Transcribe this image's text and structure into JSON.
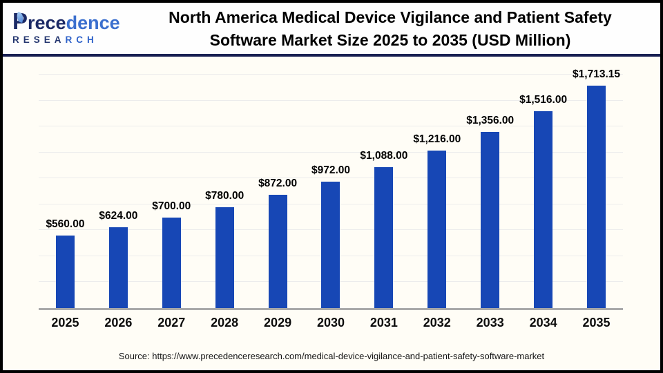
{
  "header": {
    "logo": {
      "brand_dark": "Prece",
      "brand_light": "dence",
      "sub_dark": "RESEA",
      "sub_light": "RCH"
    },
    "title_line1": "North America Medical Device Vigilance and Patient Safety",
    "title_line2": "Software Market Size 2025 to 2035 (USD Million)"
  },
  "chart_data": {
    "type": "bar",
    "title": "North America Medical Device Vigilance and Patient Safety Software Market Size 2025 to 2035 (USD Million)",
    "categories": [
      "2025",
      "2026",
      "2027",
      "2028",
      "2029",
      "2030",
      "2031",
      "2032",
      "2033",
      "2034",
      "2035"
    ],
    "values": [
      560,
      624,
      700,
      780,
      872,
      972,
      1088,
      1216,
      1356,
      1516,
      1713.15
    ],
    "data_labels": [
      "$560.00",
      "$624.00",
      "$700.00",
      "$780.00",
      "$872.00",
      "$972.00",
      "$1,088.00",
      "$1,216.00",
      "$1,356.00",
      "$1,516.00",
      "$1,713.15"
    ],
    "xlabel": "",
    "ylabel": "",
    "ylim": [
      0,
      1800
    ],
    "gridline_step": 200,
    "grid": "on",
    "legend": "none",
    "y_axis_tick_labels": "none",
    "bar_color": "#1747b5",
    "gridline_color": "#ececec",
    "axis_color": "#a9a9a9"
  },
  "footer": {
    "source": "Source: https://www.precedenceresearch.com/medical-device-vigilance-and-patient-safety-software-market"
  },
  "colors": {
    "accent_blue": "#1747b5",
    "brand_navy": "#1c2a66",
    "brand_blue": "#3b6fce",
    "divider_navy": "#181f52"
  }
}
